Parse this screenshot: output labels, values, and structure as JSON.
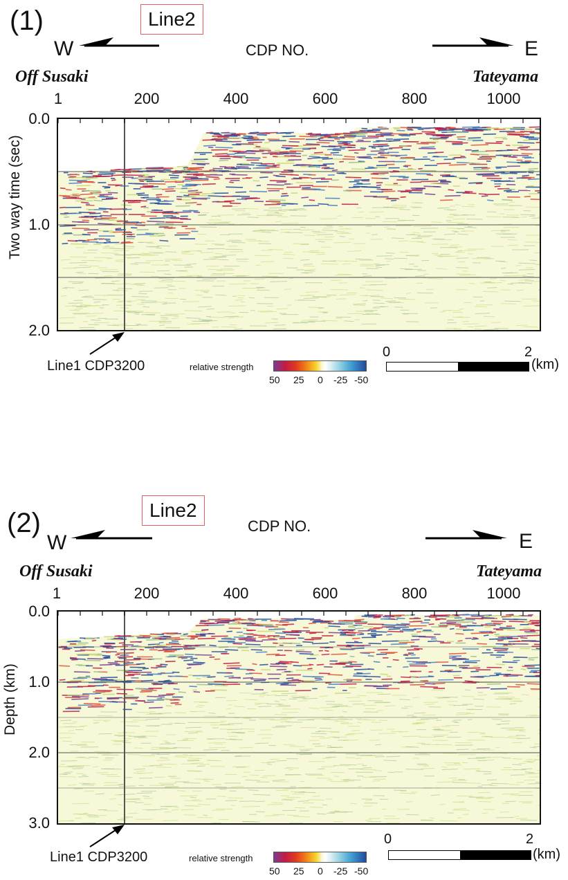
{
  "panels": [
    {
      "number": "(1)",
      "line_label": "Line2",
      "west": "W",
      "east": "E",
      "x_axis_title": "CDP NO.",
      "west_place": "Off Susaki",
      "east_place": "Tateyama",
      "x_ticks": [
        "1",
        "200",
        "400",
        "600",
        "800",
        "1000"
      ],
      "y_axis_title": "Two way time (sec)",
      "y_ticks": [
        "0.0",
        "1.0",
        "2.0"
      ],
      "marker_label": "Line1 CDP3200",
      "legend_title": "relative strength",
      "colorbar_ticks": [
        "50",
        "25",
        "0",
        "-25",
        "-50"
      ],
      "scale_start": "0",
      "scale_end": "2",
      "scale_unit": "(km)"
    },
    {
      "number": "(2)",
      "line_label": "Line2",
      "west": "W",
      "east": "E",
      "x_axis_title": "CDP NO.",
      "west_place": "Off Susaki",
      "east_place": "Tateyama",
      "x_ticks": [
        "1",
        "200",
        "400",
        "600",
        "800",
        "1000"
      ],
      "y_axis_title": "Depth (km)",
      "y_ticks": [
        "0.0",
        "1.0",
        "2.0",
        "3.0"
      ],
      "marker_label": "Line1 CDP3200",
      "legend_title": "relative strength",
      "colorbar_ticks": [
        "50",
        "25",
        "0",
        "-25",
        "-50"
      ],
      "scale_start": "0",
      "scale_end": "2",
      "scale_unit": "(km)"
    }
  ],
  "colors": {
    "background_fill": "#f6f8d8",
    "positive_strong": "#c21b45",
    "negative_strong": "#214a9c",
    "purple": "#7a3d8f",
    "yellow_green": "#c9d87a"
  }
}
